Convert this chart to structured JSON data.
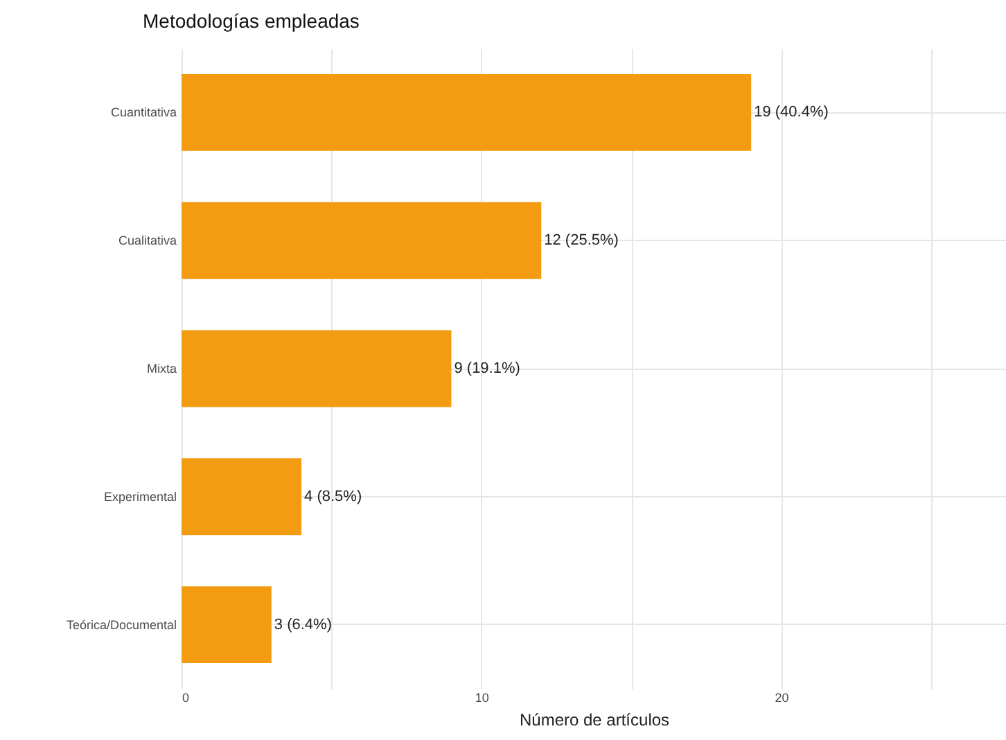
{
  "chart_data": {
    "type": "bar",
    "orientation": "horizontal",
    "title": "Metodologías empleadas",
    "xlabel": "Número de artículos",
    "categories": [
      "Cuantitativa",
      "Cualitativa",
      "Mixta",
      "Experimental",
      "Teórica/Documental"
    ],
    "values": [
      19,
      12,
      9,
      4,
      3
    ],
    "value_labels": [
      "19 (40.4%)",
      "12 (25.5%)",
      "9 (19.1%)",
      "4 (8.5%)",
      "3 (6.4%)"
    ],
    "color": "#f39c12",
    "xlim": [
      0,
      27.5
    ],
    "xticks": [
      0,
      {
        "value": 5,
        "label": null
      },
      10,
      {
        "value": 15,
        "label": null
      },
      20,
      {
        "value": 25,
        "label": null
      }
    ],
    "grid": true
  }
}
